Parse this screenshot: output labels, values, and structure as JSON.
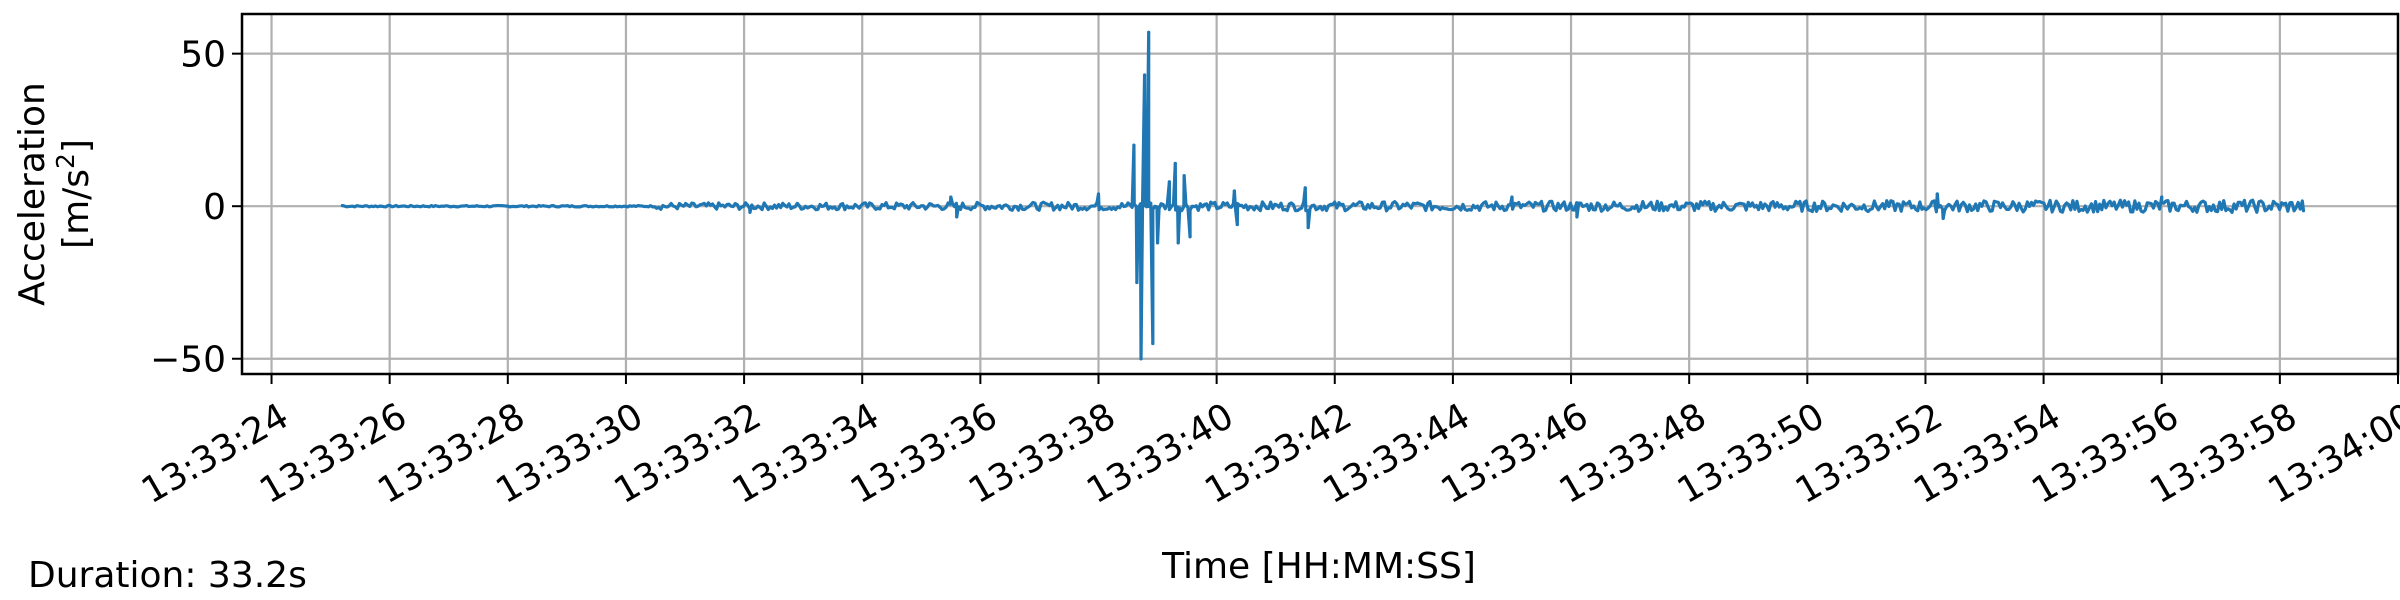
{
  "chart_data": {
    "type": "line",
    "title": "",
    "xlabel": "Time [HH:MM:SS]",
    "ylabel_line1": "Acceleration",
    "ylabel_unit": "[m/s",
    "ylabel_unit_sup": "2",
    "ylabel_unit_close": "]",
    "xlim_seconds_of_day": [
      48803.5,
      48840.0
    ],
    "ylim": [
      -55,
      63
    ],
    "x_ticks": [
      "13:33:24",
      "13:33:26",
      "13:33:28",
      "13:33:30",
      "13:33:32",
      "13:33:34",
      "13:33:36",
      "13:33:38",
      "13:33:40",
      "13:33:42",
      "13:33:44",
      "13:33:46",
      "13:33:48",
      "13:33:50",
      "13:33:52",
      "13:33:54",
      "13:33:56",
      "13:33:58",
      "13:34:00"
    ],
    "y_ticks": [
      {
        "value": 50,
        "label": "50"
      },
      {
        "value": 0,
        "label": "0"
      },
      {
        "value": -50,
        "label": "−50"
      }
    ],
    "grid": true,
    "series": [
      {
        "color": "#1f77b4",
        "x_start": "13:33:25.2",
        "x_end": "13:33:58.4",
        "points": [
          {
            "x": "13:33:25.2",
            "y": 0.2
          },
          {
            "x": "13:33:29.0",
            "y": 0.1
          },
          {
            "x": "13:33:31.0",
            "y": 0.5
          },
          {
            "x": "13:33:32.1",
            "y": -2.0
          },
          {
            "x": "13:33:35.5",
            "y": 3.0
          },
          {
            "x": "13:33:35.6",
            "y": -3.5
          },
          {
            "x": "13:33:38.0",
            "y": 4.0
          },
          {
            "x": "13:33:38.6",
            "y": 20.0
          },
          {
            "x": "13:33:38.65",
            "y": -25.0
          },
          {
            "x": "13:33:38.72",
            "y": -50.0
          },
          {
            "x": "13:33:38.78",
            "y": 43.0
          },
          {
            "x": "13:33:38.85",
            "y": 57.0
          },
          {
            "x": "13:33:38.92",
            "y": -45.0
          },
          {
            "x": "13:33:39.0",
            "y": -12.0
          },
          {
            "x": "13:33:39.2",
            "y": 8.0
          },
          {
            "x": "13:33:39.3",
            "y": 14.0
          },
          {
            "x": "13:33:39.35",
            "y": -12.0
          },
          {
            "x": "13:33:39.45",
            "y": 10.0
          },
          {
            "x": "13:33:39.55",
            "y": -10.0
          },
          {
            "x": "13:33:40.3",
            "y": 5.0
          },
          {
            "x": "13:33:40.35",
            "y": -6.0
          },
          {
            "x": "13:33:41.5",
            "y": 6.0
          },
          {
            "x": "13:33:41.55",
            "y": -7.0
          },
          {
            "x": "13:33:45.0",
            "y": 3.0
          },
          {
            "x": "13:33:46.1",
            "y": -3.5
          },
          {
            "x": "13:33:52.2",
            "y": 4.0
          },
          {
            "x": "13:33:52.3",
            "y": -4.0
          },
          {
            "x": "13:33:56.0",
            "y": 3.0
          },
          {
            "x": "13:33:58.4",
            "y": -1.5
          }
        ]
      }
    ]
  },
  "footer": {
    "duration_text": "Duration: 33.2s"
  }
}
